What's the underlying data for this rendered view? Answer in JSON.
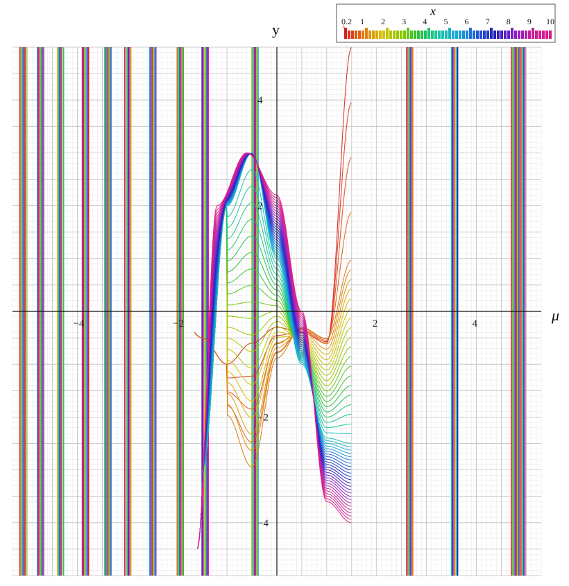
{
  "chart_data": {
    "type": "line",
    "title": "",
    "xlabel": "μ",
    "ylabel": "y",
    "xlim": [
      -5.3,
      5.3
    ],
    "ylim": [
      -5.0,
      5.0
    ],
    "grid": true,
    "x_ticks": [
      -4,
      -2,
      2,
      4
    ],
    "x_tick_labels": [
      "−4",
      "−2",
      "2",
      "4"
    ],
    "y_ticks": [
      -4,
      -2,
      2,
      4
    ],
    "y_tick_labels": [
      "−4",
      "−2",
      "2",
      "4"
    ],
    "legend": {
      "title": "x",
      "placement": "top-right",
      "range": [
        0.2,
        10
      ],
      "labels": [
        "0.2",
        "1",
        "2",
        "3",
        "4",
        "5",
        "6",
        "7",
        "8",
        "9",
        "10"
      ],
      "colors": [
        "#d62020",
        "#e07a10",
        "#d6c200",
        "#8cc800",
        "#1fc040",
        "#15c8a8",
        "#1aa8d8",
        "#2060d8",
        "#2020b8",
        "#8020c8",
        "#c8209a",
        "#e0188a"
      ]
    },
    "series": [
      {
        "x_param": 0.2,
        "values_mu": [
          -4.5,
          -4.0,
          -3.5,
          -3.0,
          -2.5,
          -2.0,
          -1.5,
          -1.0,
          -0.5,
          0.0,
          0.5,
          1.0,
          1.5
        ],
        "values_y": [
          0,
          0,
          0,
          0,
          0,
          0,
          -0.5,
          -1.0,
          -0.6,
          -0.3,
          -0.4,
          -0.6,
          5.0
        ]
      },
      {
        "x_param": 1.0,
        "values_mu": [
          -1.0,
          -0.5,
          0.0,
          0.5,
          1.0,
          1.5
        ],
        "values_y": [
          -2.0,
          -3.0,
          -0.9,
          -0.3,
          -0.5,
          1.0
        ]
      },
      {
        "x_param": 5.0,
        "values_mu": [
          -1.5,
          -1.0,
          -0.5,
          0.0,
          0.5,
          1.0,
          1.5
        ],
        "values_y": [
          -3.0,
          2.0,
          3.0,
          1.0,
          -1.0,
          -2.4,
          -2.5
        ]
      },
      {
        "x_param": 10.0,
        "values_mu": [
          -1.6,
          -1.2,
          -0.6,
          0.0,
          0.5,
          1.0,
          1.5
        ],
        "values_y": [
          -4.5,
          2.0,
          3.0,
          2.2,
          0.0,
          -3.6,
          -4.0
        ]
      }
    ],
    "vertical_lines_mu": [
      -5.15,
      -4.8,
      -4.4,
      -3.9,
      -3.45,
      -3.05,
      -2.55,
      -2.0,
      -1.5,
      -0.5,
      2.6,
      3.5,
      4.7,
      4.85
    ]
  }
}
